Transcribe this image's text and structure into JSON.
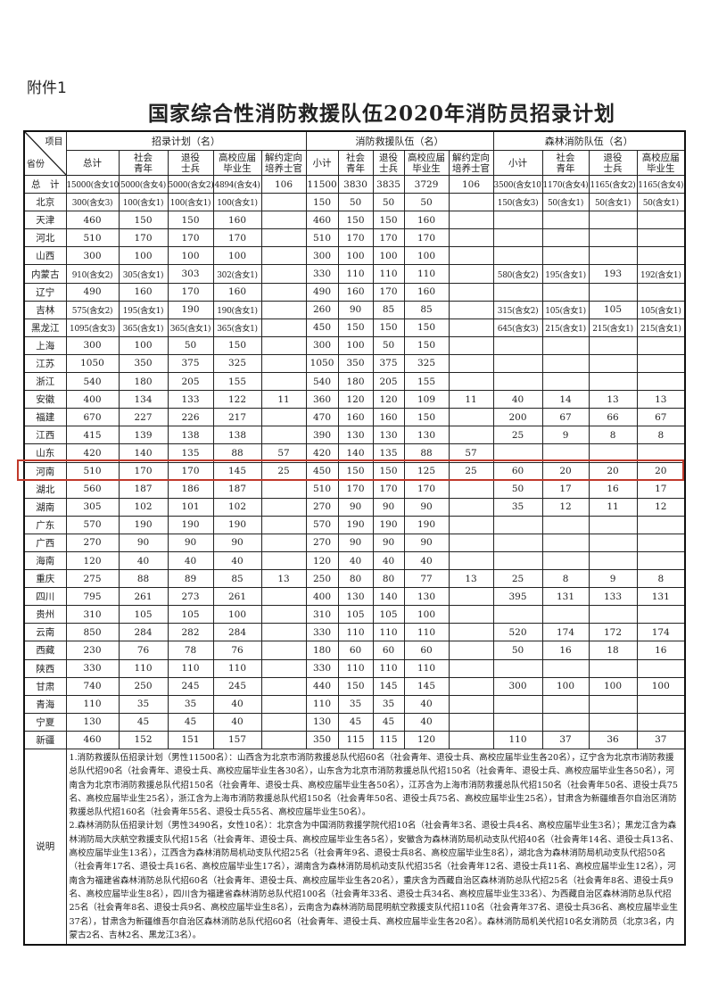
{
  "attachment_label": "附件1",
  "title": "国家综合性消防救援队伍2020年消防员招录计划",
  "header": {
    "corner_item": "项目",
    "corner_province": "省份",
    "groups": [
      "招录计划（名）",
      "消防救援队伍（名）",
      "森林消防队伍（名）"
    ],
    "plan_cols": [
      "总计",
      "社会青年",
      "退役士兵",
      "高校应届毕业生",
      "解约定向培养士官"
    ],
    "rescue_cols": [
      "小计",
      "社会青年",
      "退役士兵",
      "高校应届毕业生",
      "解约定向培养士官"
    ],
    "forest_cols": [
      "小计",
      "社会青年",
      "退役士兵",
      "高校应届毕业生"
    ]
  },
  "highlight": {
    "province": "河南",
    "color": "#c0392b"
  },
  "rows": [
    [
      "总　计",
      "15000(含女10)",
      "5000(含女4)",
      "5000(含女2)",
      "4894(含女4)",
      "106",
      "11500",
      "3830",
      "3835",
      "3729",
      "106",
      "3500(含女10)",
      "1170(含女4)",
      "1165(含女2)",
      "1165(含女4)"
    ],
    [
      "北京",
      "300(含女3)",
      "100(含女1)",
      "100(含女1)",
      "100(含女1)",
      "",
      "150",
      "50",
      "50",
      "50",
      "",
      "150(含女3)",
      "50(含女1)",
      "50(含女1)",
      "50(含女1)"
    ],
    [
      "天津",
      "460",
      "150",
      "150",
      "160",
      "",
      "460",
      "150",
      "150",
      "160",
      "",
      "",
      "",
      "",
      ""
    ],
    [
      "河北",
      "510",
      "170",
      "170",
      "170",
      "",
      "510",
      "170",
      "170",
      "170",
      "",
      "",
      "",
      "",
      ""
    ],
    [
      "山西",
      "300",
      "100",
      "100",
      "100",
      "",
      "300",
      "100",
      "100",
      "100",
      "",
      "",
      "",
      "",
      ""
    ],
    [
      "内蒙古",
      "910(含女2)",
      "305(含女1)",
      "303",
      "302(含女1)",
      "",
      "330",
      "110",
      "110",
      "110",
      "",
      "580(含女2)",
      "195(含女1)",
      "193",
      "192(含女1)"
    ],
    [
      "辽宁",
      "490",
      "160",
      "170",
      "160",
      "",
      "490",
      "160",
      "170",
      "160",
      "",
      "",
      "",
      "",
      ""
    ],
    [
      "吉林",
      "575(含女2)",
      "195(含女1)",
      "190",
      "190(含女1)",
      "",
      "260",
      "90",
      "85",
      "85",
      "",
      "315(含女2)",
      "105(含女1)",
      "105",
      "105(含女1)"
    ],
    [
      "黑龙江",
      "1095(含女3)",
      "365(含女1)",
      "365(含女1)",
      "365(含女1)",
      "",
      "450",
      "150",
      "150",
      "150",
      "",
      "645(含女3)",
      "215(含女1)",
      "215(含女1)",
      "215(含女1)"
    ],
    [
      "上海",
      "300",
      "100",
      "50",
      "150",
      "",
      "300",
      "100",
      "50",
      "150",
      "",
      "",
      "",
      "",
      ""
    ],
    [
      "江苏",
      "1050",
      "350",
      "375",
      "325",
      "",
      "1050",
      "350",
      "375",
      "325",
      "",
      "",
      "",
      "",
      ""
    ],
    [
      "浙江",
      "540",
      "180",
      "205",
      "155",
      "",
      "540",
      "180",
      "205",
      "155",
      "",
      "",
      "",
      "",
      ""
    ],
    [
      "安徽",
      "400",
      "134",
      "133",
      "122",
      "11",
      "360",
      "120",
      "120",
      "109",
      "11",
      "40",
      "14",
      "13",
      "13"
    ],
    [
      "福建",
      "670",
      "227",
      "226",
      "217",
      "",
      "470",
      "160",
      "160",
      "150",
      "",
      "200",
      "67",
      "66",
      "67"
    ],
    [
      "江西",
      "415",
      "139",
      "138",
      "138",
      "",
      "390",
      "130",
      "130",
      "130",
      "",
      "25",
      "9",
      "8",
      "8"
    ],
    [
      "山东",
      "420",
      "140",
      "135",
      "88",
      "57",
      "420",
      "140",
      "135",
      "88",
      "57",
      "",
      "",
      "",
      ""
    ],
    [
      "河南",
      "510",
      "170",
      "170",
      "145",
      "25",
      "450",
      "150",
      "150",
      "125",
      "25",
      "60",
      "20",
      "20",
      "20"
    ],
    [
      "湖北",
      "560",
      "187",
      "186",
      "187",
      "",
      "510",
      "170",
      "170",
      "170",
      "",
      "50",
      "17",
      "16",
      "17"
    ],
    [
      "湖南",
      "305",
      "102",
      "101",
      "102",
      "",
      "270",
      "90",
      "90",
      "90",
      "",
      "35",
      "12",
      "11",
      "12"
    ],
    [
      "广东",
      "570",
      "190",
      "190",
      "190",
      "",
      "570",
      "190",
      "190",
      "190",
      "",
      "",
      "",
      "",
      ""
    ],
    [
      "广西",
      "270",
      "90",
      "90",
      "90",
      "",
      "270",
      "90",
      "90",
      "90",
      "",
      "",
      "",
      "",
      ""
    ],
    [
      "海南",
      "120",
      "40",
      "40",
      "40",
      "",
      "120",
      "40",
      "40",
      "40",
      "",
      "",
      "",
      "",
      ""
    ],
    [
      "重庆",
      "275",
      "88",
      "89",
      "85",
      "13",
      "250",
      "80",
      "80",
      "77",
      "13",
      "25",
      "8",
      "9",
      "8"
    ],
    [
      "四川",
      "795",
      "261",
      "273",
      "261",
      "",
      "400",
      "130",
      "140",
      "130",
      "",
      "395",
      "131",
      "133",
      "131"
    ],
    [
      "贵州",
      "310",
      "105",
      "105",
      "100",
      "",
      "310",
      "105",
      "105",
      "100",
      "",
      "",
      "",
      "",
      ""
    ],
    [
      "云南",
      "850",
      "284",
      "282",
      "284",
      "",
      "330",
      "110",
      "110",
      "110",
      "",
      "520",
      "174",
      "172",
      "174"
    ],
    [
      "西藏",
      "230",
      "76",
      "78",
      "76",
      "",
      "180",
      "60",
      "60",
      "60",
      "",
      "50",
      "16",
      "18",
      "16"
    ],
    [
      "陕西",
      "330",
      "110",
      "110",
      "110",
      "",
      "330",
      "110",
      "110",
      "110",
      "",
      "",
      "",
      "",
      ""
    ],
    [
      "甘肃",
      "740",
      "250",
      "245",
      "245",
      "",
      "440",
      "150",
      "145",
      "145",
      "",
      "300",
      "100",
      "100",
      "100"
    ],
    [
      "青海",
      "110",
      "35",
      "35",
      "40",
      "",
      "110",
      "35",
      "35",
      "40",
      "",
      "",
      "",
      "",
      ""
    ],
    [
      "宁夏",
      "130",
      "45",
      "45",
      "40",
      "",
      "130",
      "45",
      "45",
      "40",
      "",
      "",
      "",
      "",
      ""
    ],
    [
      "新疆",
      "460",
      "152",
      "151",
      "157",
      "",
      "350",
      "115",
      "115",
      "120",
      "",
      "110",
      "37",
      "36",
      "37"
    ]
  ],
  "notes": {
    "label": "说明",
    "items": [
      "1.消防救援队伍招录计划（男性11500名）：山西含为北京市消防救援总队代招60名（社会青年、退役士兵、高校应届毕业生各20名），辽宁含为北京市消防救援总队代招90名（社会青年、退役士兵、高校应届毕业生各30名），山东含为北京市消防救援总队代招150名（社会青年、退役士兵、高校应届毕业生各50名），河南含为北京市消防救援总队代招150名（社会青年、退役士兵、高校应届毕业生各50名），江苏含为上海市消防救援总队代招150名（社会青年50名、退役士兵75名、高校应届毕业生25名），浙江含为上海市消防救援总队代招150名（社会青年50名、退役士兵75名、高校应届毕业生25名），甘肃含为新疆维吾尔自治区消防救援总队代招160名（社会青年55名、退役士兵55名、高校应届毕业生50名）。",
      "2.森林消防队伍招录计划（男性3490名，女性10名）：北京含为中国消防救援学院代招10名（社会青年3名、退役士兵4名、高校应届毕业生3名）；黑龙江含为森林消防局大庆航空救援支队代招15名（社会青年、退役士兵、高校应届毕业生各5名），安徽含为森林消防局机动支队代招40名（社会青年14名、退役士兵13名、高校应届毕业生13名），江西含为森林消防局机动支队代招25名（社会青年9名、退役士兵8名、高校应届毕业生8名），湖北含为森林消防局机动支队代招50名（社会青年17名、退役士兵16名、高校应届毕业生17名），湖南含为森林消防局机动支队代招35名（社会青年12名、退役士兵11名、高校应届毕业生12名），河南含为福建省森林消防总队代招60名（社会青年、退役士兵、高校应届毕业生各20名），重庆含为西藏自治区森林消防总队代招25名（社会青年8名、退役士兵9名、高校应届毕业生8名），四川含为福建省森林消防总队代招100名（社会青年33名、退役士兵34名、高校应届毕业生33名）、为西藏自治区森林消防总队代招25名（社会青年8名、退役士兵9名、高校应届毕业生8名），云南含为森林消防局昆明航空救援支队代招110名（社会青年37名、退役士兵36名、高校应届毕业生37名），甘肃含为新疆维吾尔自治区森林消防总队代招60名（社会青年、退役士兵、高校应届毕业生各20名）。森林消防局机关代招10名女消防员（北京3名，内蒙古2名、吉林2名、黑龙江3名）。"
    ]
  }
}
